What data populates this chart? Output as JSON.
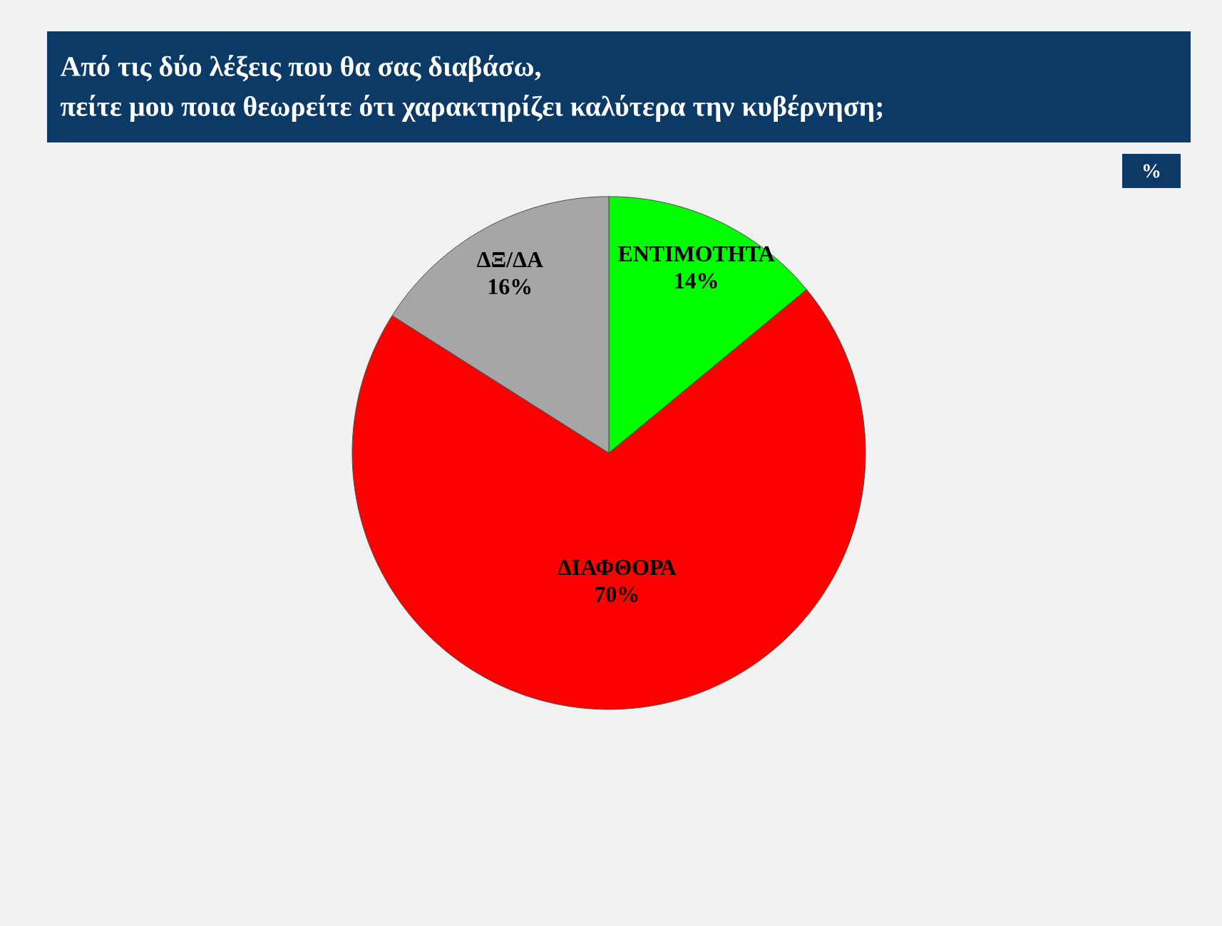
{
  "chart_data": {
    "type": "pie",
    "title": "Από τις δύο λέξεις που θα σας διαβάσω,",
    "subtitle": "πείτε μου ποια θεωρείτε ότι χαρακτηρίζει καλύτερα την κυβέρνηση;",
    "categories": [
      "ΕΝΤΙΜΟΤΗΤΑ",
      "ΔΙΑΦΘΟΡΑ",
      "ΔΞ/ΔΑ"
    ],
    "values": [
      14,
      70,
      16
    ],
    "colors": [
      "#00ff00",
      "#ff0000",
      "#a6a6a6"
    ],
    "value_labels": [
      "14%",
      "70%",
      "16%"
    ],
    "annotations": [
      "%"
    ]
  }
}
